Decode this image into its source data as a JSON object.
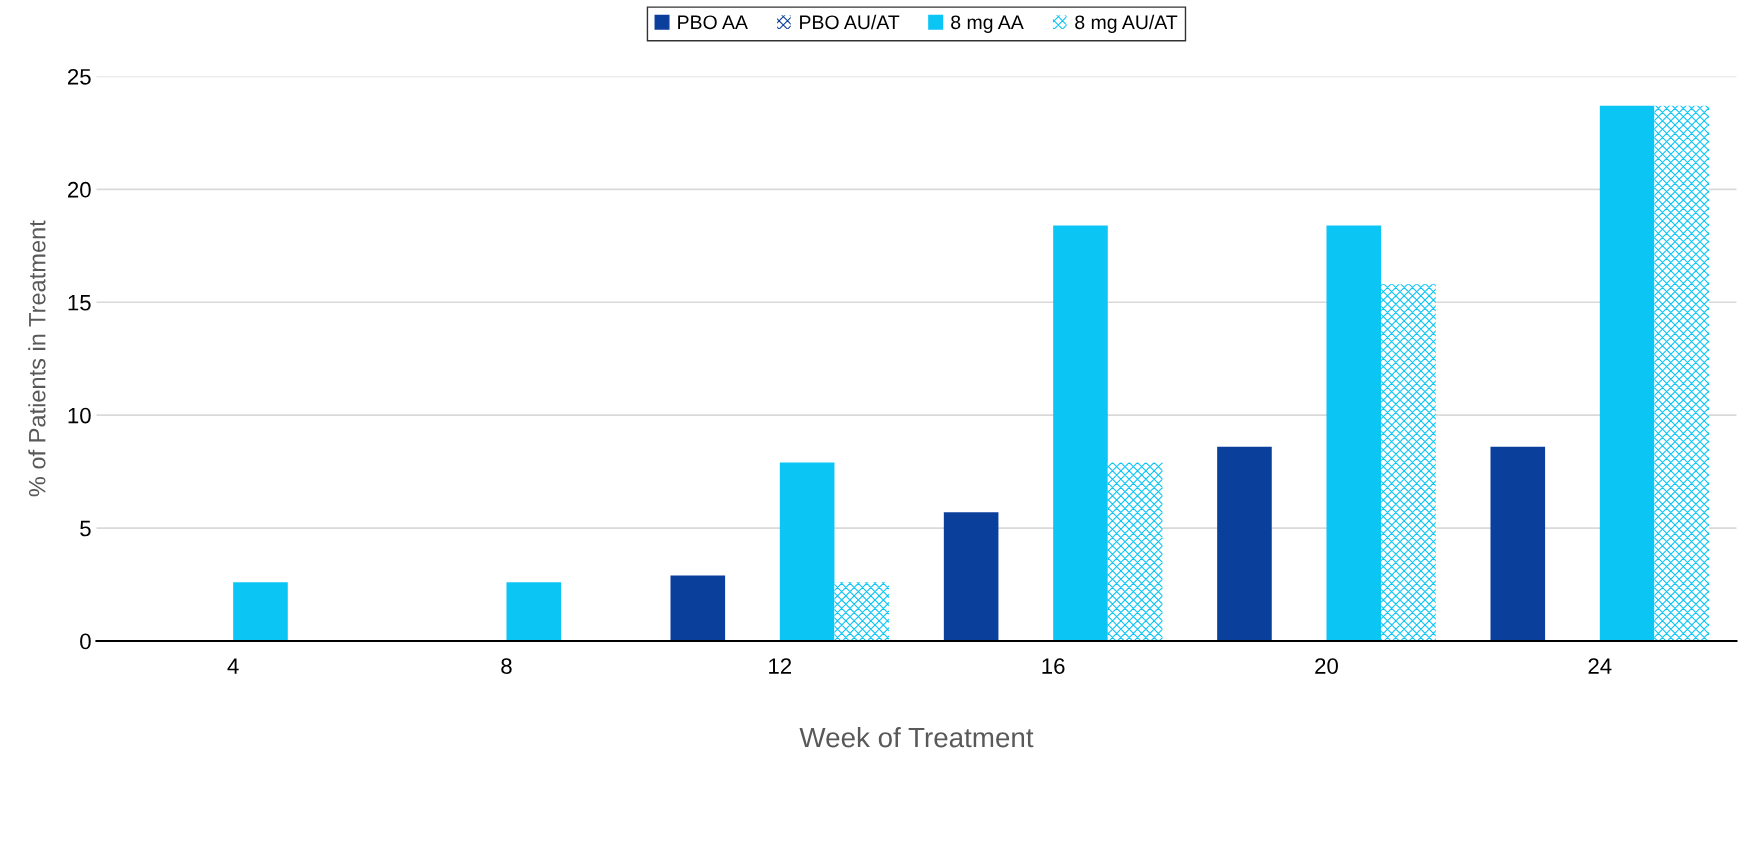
{
  "chart_data": {
    "type": "bar",
    "xlabel": "Week of Treatment",
    "ylabel": "% of Patients in Treatment",
    "categories": [
      "4",
      "8",
      "12",
      "16",
      "20",
      "24"
    ],
    "series": [
      {
        "name": "PBO AA",
        "color": "#0b3f9c",
        "values": [
          0,
          0,
          2.9,
          5.7,
          8.6,
          8.6
        ]
      },
      {
        "name": "PBO AU/AT",
        "color": "#0b3f9c",
        "values": [
          0,
          0,
          0,
          0,
          0,
          0
        ]
      },
      {
        "name": "8 mg AA",
        "color": "#0bc5f5",
        "values": [
          2.6,
          2.6,
          7.9,
          18.4,
          18.4,
          23.7
        ]
      },
      {
        "name": "8 mg AU/AT",
        "color": "#0bc5f5",
        "values": [
          0,
          0,
          2.6,
          7.9,
          15.8,
          23.7
        ]
      }
    ],
    "ylim": [
      0,
      25
    ],
    "yticks": [
      0,
      5,
      10,
      15,
      20,
      25
    ],
    "grid": "y",
    "legend": "top"
  }
}
